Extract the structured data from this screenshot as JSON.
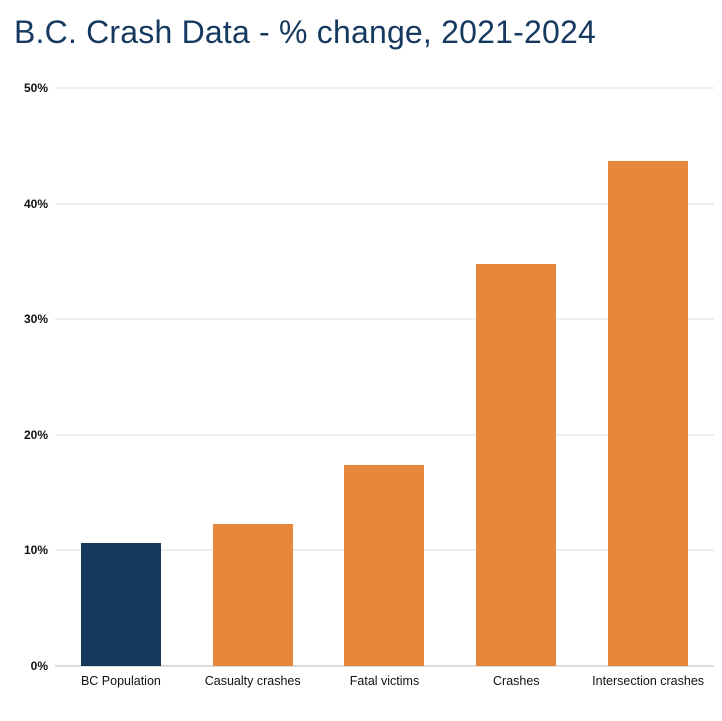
{
  "title": "B.C. Crash Data - % change, 2021-2024",
  "colors": {
    "title_text": "#16395f",
    "navy_bar": "#13395d",
    "orange_bar": "#e8873a",
    "gridline": "#dcdcdc",
    "axis_line": "#b9b9b9"
  },
  "chart_data": {
    "type": "bar",
    "title": "B.C. Crash Data - % change, 2021-2024",
    "categories": [
      "BC Population",
      "Casualty crashes",
      "Fatal victims",
      "Crashes",
      "Intersection crashes"
    ],
    "values": [
      10.6,
      12.3,
      17.4,
      34.8,
      43.7
    ],
    "colors": [
      "#13395d",
      "#e8873a",
      "#e8873a",
      "#e8873a",
      "#e8873a"
    ],
    "xlabel": "",
    "ylabel": "",
    "ylim": [
      0,
      50
    ],
    "ytick_values": [
      0,
      10,
      20,
      30,
      40,
      50
    ],
    "ytick_labels": [
      "0%",
      "10%",
      "20%",
      "30%",
      "40%",
      "50%"
    ],
    "grid": true,
    "legend": false
  }
}
